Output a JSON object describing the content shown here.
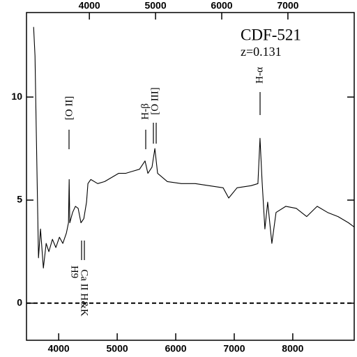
{
  "chart_data": {
    "type": "line",
    "title": "CDF-521",
    "subtitle": "z=0.131",
    "annotations": [
      "[O II]",
      "H-β",
      "[O III]",
      "H-α",
      "H9",
      "Ca II H&K"
    ],
    "x": [
      3571,
      3595,
      3619,
      3655,
      3690,
      3738,
      3786,
      3833,
      3893,
      3952,
      4012,
      4071,
      4131,
      4167,
      4179,
      4190,
      4238,
      4286,
      4333,
      4381,
      4429,
      4476,
      4500,
      4548,
      4667,
      4786,
      4905,
      5024,
      5143,
      5262,
      5381,
      5476,
      5524,
      5595,
      5643,
      5690,
      5857,
      6095,
      6333,
      6571,
      6810,
      6905,
      7048,
      7286,
      7405,
      7440,
      7476,
      7524,
      7571,
      7643,
      7714,
      7881,
      8060,
      8238,
      8417,
      8595,
      8774,
      8952,
      9048
    ],
    "series": [
      {
        "color": "#000000",
        "values": [
          13.4,
          12.0,
          8.0,
          2.2,
          3.6,
          1.7,
          2.9,
          2.5,
          3.1,
          2.7,
          3.2,
          2.9,
          3.4,
          3.9,
          6.0,
          3.9,
          4.4,
          4.7,
          4.6,
          3.9,
          4.1,
          4.9,
          5.8,
          6.0,
          5.8,
          5.9,
          6.1,
          6.3,
          6.3,
          6.4,
          6.5,
          6.9,
          6.3,
          6.6,
          7.5,
          6.3,
          5.9,
          5.8,
          5.8,
          5.7,
          5.6,
          5.1,
          5.6,
          5.7,
          5.8,
          8.0,
          5.9,
          3.6,
          4.9,
          2.9,
          4.4,
          4.7,
          4.6,
          4.2,
          4.7,
          4.4,
          4.2,
          3.9,
          3.7
        ]
      }
    ],
    "xlim": [
      3450,
      9050
    ],
    "xticks": [
      4000,
      5000,
      6000,
      7000,
      8000
    ],
    "x2lim": [
      3050,
      8002
    ],
    "x2ticks": [
      4000,
      5000,
      6000,
      7000
    ],
    "ylim": [
      -1.8,
      14.1
    ],
    "yticks": [
      0,
      5,
      10
    ],
    "hline": 0,
    "grid": false
  }
}
